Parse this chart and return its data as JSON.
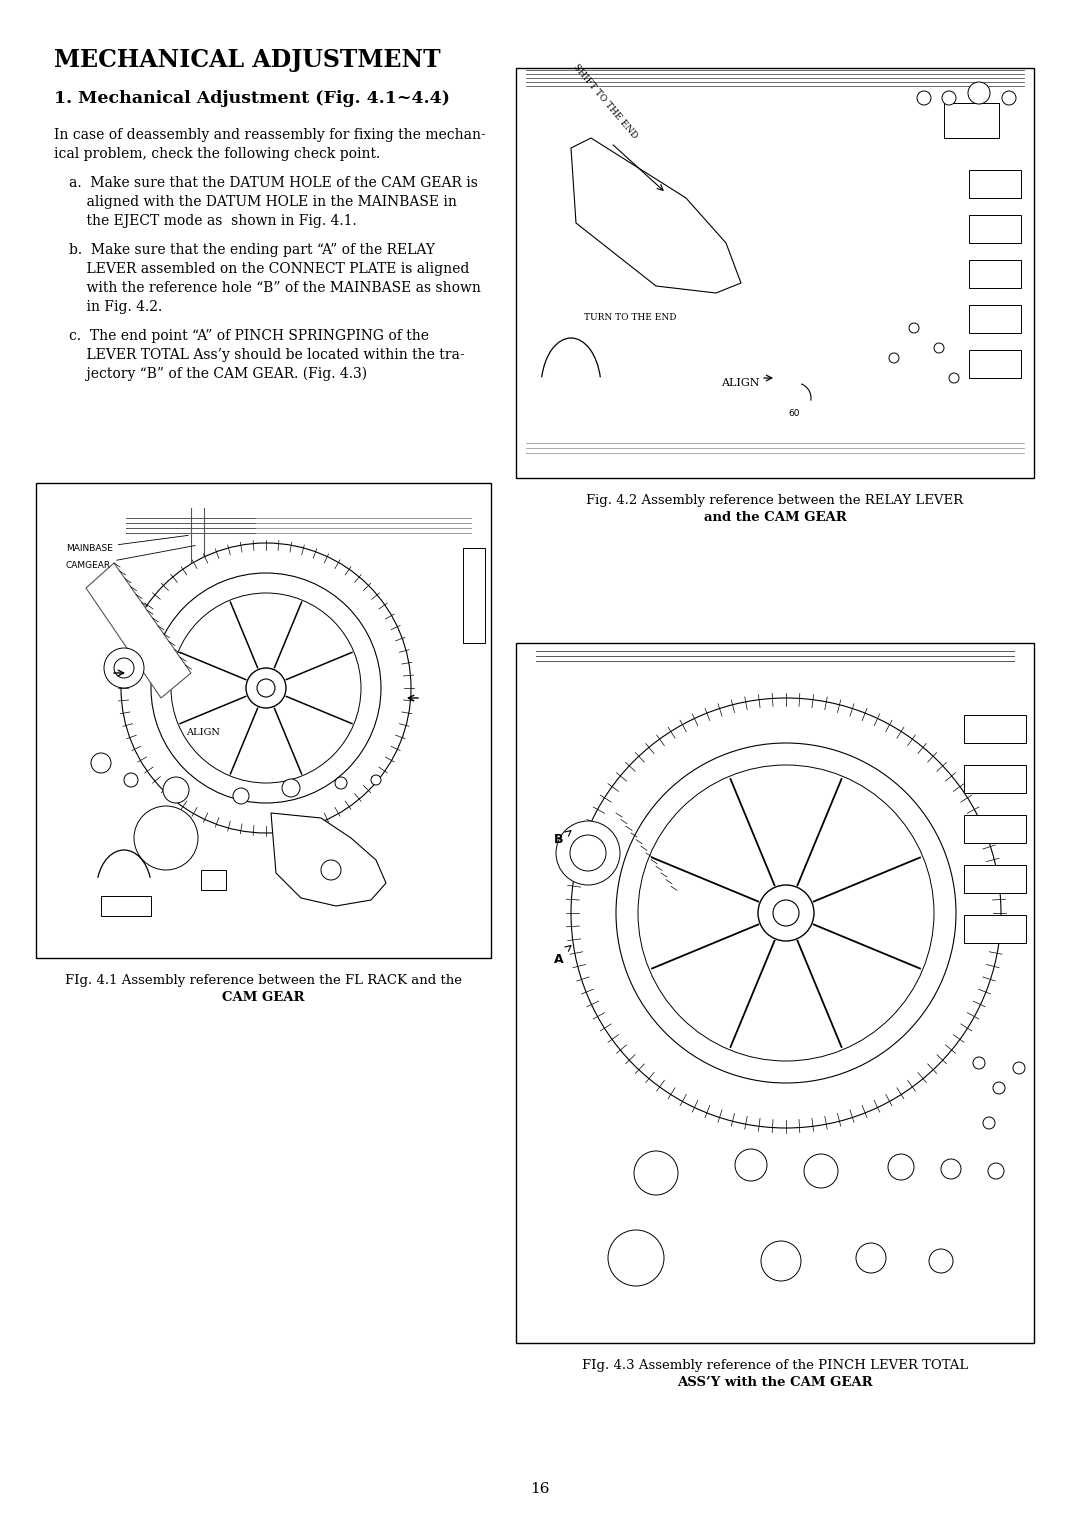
{
  "title": "MECHANICAL ADJUSTMENT",
  "subtitle": "1. Mechanical Adjustment (Fig. 4.1~4.4)",
  "body_line1": "In case of deassembly and reassembly for fixing the mechan-",
  "body_line2": "ical problem, check the following check point.",
  "item_a1": "a.  Make sure that the DATUM HOLE of the CAM GEAR is",
  "item_a2": "    aligned with the DATUM HOLE in the MAINBASE in",
  "item_a3": "    the EJECT mode as  shown in Fig. 4.1.",
  "item_b1": "b.  Make sure that the ending part “A” of the RELAY",
  "item_b2": "    LEVER assembled on the CONNECT PLATE is aligned",
  "item_b3": "    with the reference hole “B” of the MAINBASE as shown",
  "item_b4": "    in Fig. 4.2.",
  "item_c1": "c.  The end point “A” of PINCH SPRINGPING of the",
  "item_c2": "    LEVER TOTAL Ass’y should be located within the tra-",
  "item_c3": "    jectory “B” of the CAM GEAR. (Fig. 4.3)",
  "fig1_cap1": "FIg. 4.1 Assembly reference between the FL RACK and the",
  "fig1_cap2": "CAM GEAR",
  "fig2_cap1": "Fig. 4.2 Assembly reference between the RELAY LEVER",
  "fig2_cap2": "and the CAM GEAR",
  "fig3_cap1": "FIg. 4.3 Assembly reference of the PINCH LEVER TOTAL",
  "fig3_cap2": "ASS’Y with the CAM GEAR",
  "page_number": "16",
  "bg_color": "#ffffff"
}
